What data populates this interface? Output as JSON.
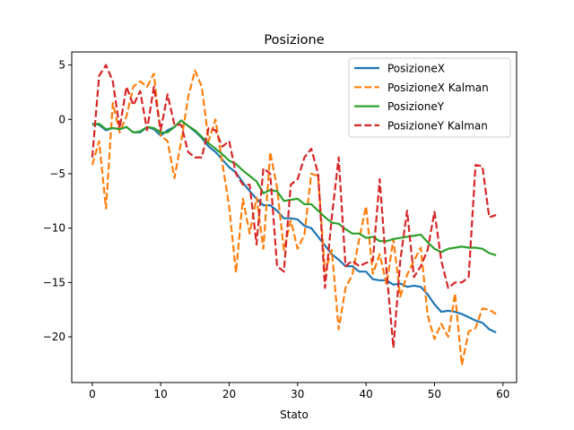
{
  "chart_data": {
    "type": "line",
    "title": "Posizione",
    "xlabel": "Stato",
    "ylabel": "",
    "xlim": [
      -3,
      62
    ],
    "ylim": [
      -24.2,
      6.2
    ],
    "xticks": [
      0,
      10,
      20,
      30,
      40,
      50,
      60
    ],
    "yticks": [
      5,
      0,
      -5,
      -10,
      -15,
      -20
    ],
    "xtick_labels": [
      "0",
      "10",
      "20",
      "30",
      "40",
      "50",
      "60"
    ],
    "ytick_labels": [
      "5",
      "0",
      "−5",
      "−10",
      "−15",
      "−20"
    ],
    "legend_position": "top-right",
    "grid": false,
    "x": [
      0,
      1,
      2,
      3,
      4,
      5,
      6,
      7,
      8,
      9,
      10,
      11,
      12,
      13,
      14,
      15,
      16,
      17,
      18,
      19,
      20,
      21,
      22,
      23,
      24,
      25,
      26,
      27,
      28,
      29,
      30,
      31,
      32,
      33,
      34,
      35,
      36,
      37,
      38,
      39,
      40,
      41,
      42,
      43,
      44,
      45,
      46,
      47,
      48,
      49,
      50,
      51,
      52,
      53,
      54,
      55,
      56,
      57,
      58,
      59
    ],
    "series": [
      {
        "name": "PosizioneX",
        "color": "#1f77b4",
        "dash": "solid",
        "values": [
          -0.4,
          -0.5,
          -1.0,
          -0.8,
          -0.9,
          -0.7,
          -1.2,
          -1.2,
          -0.7,
          -0.9,
          -1.5,
          -1.0,
          -0.7,
          -0.1,
          -0.6,
          -1.1,
          -1.7,
          -2.5,
          -3.0,
          -3.7,
          -4.4,
          -4.9,
          -5.8,
          -6.6,
          -7.3,
          -7.9,
          -7.9,
          -8.4,
          -9.1,
          -9.1,
          -9.2,
          -9.8,
          -10.0,
          -10.8,
          -11.6,
          -12.4,
          -12.9,
          -13.5,
          -13.5,
          -14.0,
          -14.0,
          -14.7,
          -14.8,
          -14.8,
          -15.2,
          -15.1,
          -15.4,
          -15.3,
          -15.4,
          -16.1,
          -17.0,
          -17.7,
          -17.6,
          -17.7,
          -17.9,
          -18.2,
          -18.5,
          -18.7,
          -19.3,
          -19.6
        ]
      },
      {
        "name": "PosizioneX Kalman",
        "color": "#ff7f0e",
        "dash": "dashed",
        "values": [
          -4.2,
          -2.0,
          -8.2,
          1.5,
          -1.2,
          0.3,
          3.0,
          3.5,
          3.0,
          4.2,
          -1.5,
          -2.0,
          -5.4,
          -2.0,
          2.0,
          4.5,
          3.0,
          -2.0,
          0.0,
          -4.0,
          -8.0,
          -14.1,
          -7.3,
          -10.5,
          -7.2,
          -11.9,
          -3.0,
          -6.3,
          -12.0,
          -9.3,
          -11.9,
          -10.6,
          -5.0,
          -5.2,
          -14.0,
          -12.0,
          -19.3,
          -15.5,
          -14.3,
          -11.0,
          -8.0,
          -14.2,
          -12.4,
          -15.2,
          -11.0,
          -16.3,
          -14.3,
          -13.0,
          -11.8,
          -18.0,
          -20.2,
          -18.8,
          -20.0,
          -16.0,
          -22.6,
          -19.5,
          -19.2,
          -17.4,
          -17.5,
          -17.9
        ]
      },
      {
        "name": "PosizioneY",
        "color": "#2ca02c",
        "dash": "solid",
        "values": [
          -0.5,
          -0.4,
          -0.9,
          -0.8,
          -0.9,
          -0.7,
          -1.2,
          -1.1,
          -0.7,
          -0.8,
          -1.2,
          -1.2,
          -0.7,
          -0.1,
          -0.6,
          -1.0,
          -1.6,
          -2.2,
          -2.7,
          -3.2,
          -3.8,
          -4.1,
          -4.7,
          -5.2,
          -5.7,
          -6.8,
          -6.5,
          -6.6,
          -7.5,
          -7.4,
          -7.3,
          -7.8,
          -7.8,
          -8.4,
          -9.0,
          -9.5,
          -9.6,
          -10.1,
          -10.5,
          -10.5,
          -10.9,
          -10.8,
          -11.2,
          -11.2,
          -11.0,
          -10.9,
          -10.8,
          -10.7,
          -10.6,
          -11.3,
          -11.9,
          -12.2,
          -11.9,
          -11.8,
          -11.7,
          -11.8,
          -11.8,
          -11.9,
          -12.3,
          -12.5
        ]
      },
      {
        "name": "PosizioneY Kalman",
        "color": "#d62728",
        "dash": "dashed",
        "values": [
          -3.5,
          4.0,
          5.0,
          3.5,
          -0.8,
          3.0,
          1.3,
          2.6,
          -1.0,
          3.0,
          -1.0,
          2.3,
          -0.5,
          -0.5,
          -3.0,
          -3.5,
          -3.5,
          -0.8,
          -1.0,
          -2.5,
          -2.0,
          -5.0,
          -6.0,
          -6.0,
          -11.5,
          -4.5,
          -5.0,
          -13.5,
          -14.0,
          -6.0,
          -5.5,
          -3.5,
          -2.7,
          -5.0,
          -15.5,
          -9.0,
          -3.5,
          -13.5,
          -13.0,
          -13.5,
          -13.2,
          -13.0,
          -5.5,
          -14.0,
          -21.0,
          -13.0,
          -8.4,
          -14.5,
          -13.5,
          -12.0,
          -8.5,
          -13.0,
          -15.5,
          -15.0,
          -15.0,
          -14.5,
          -4.2,
          -4.3,
          -9.0,
          -8.8
        ]
      }
    ]
  }
}
